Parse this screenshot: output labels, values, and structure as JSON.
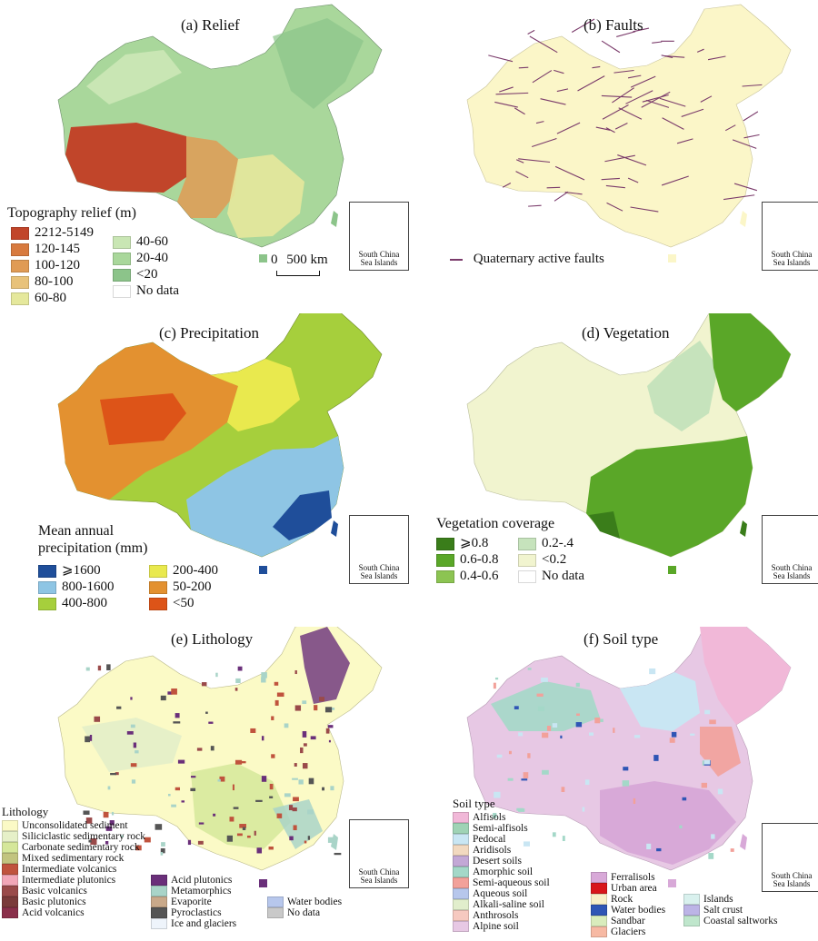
{
  "inset_caption": [
    "South China",
    "Sea Islands"
  ],
  "panels": {
    "relief": {
      "title": "(a) Relief",
      "legend_title": "Topography relief  (m)",
      "classes": [
        {
          "label": "2212-5149",
          "color": "#c1452a"
        },
        {
          "label": "120-145",
          "color": "#d87a3e"
        },
        {
          "label": "100-120",
          "color": "#e09b55"
        },
        {
          "label": "80-100",
          "color": "#e8c27a"
        },
        {
          "label": "60-80",
          "color": "#e5e89c"
        },
        {
          "label": "40-60",
          "color": "#c9e6b4"
        },
        {
          "label": "20-40",
          "color": "#a9d79b"
        },
        {
          "label": "<20",
          "color": "#8cc48a"
        },
        {
          "label": "No data",
          "color": "#ffffff"
        }
      ],
      "scale_zero": "0",
      "scale_label": "500 km"
    },
    "faults": {
      "title": "(b) Faults",
      "legend_label": "Quaternary active faults",
      "line_color": "#7a3a6a",
      "fill_color": "#fbf6c8"
    },
    "precipitation": {
      "title": "(c) Precipitation",
      "legend_title": [
        "Mean annual",
        "precipitation (mm)"
      ],
      "classes": [
        {
          "label": "⩾1600",
          "color": "#1f4e9a"
        },
        {
          "label": "800-1600",
          "color": "#8ec5e4"
        },
        {
          "label": "400-800",
          "color": "#a6cf3c"
        },
        {
          "label": "200-400",
          "color": "#e9e94e"
        },
        {
          "label": "50-200",
          "color": "#e39130"
        },
        {
          "label": "<50",
          "color": "#dd5418"
        }
      ]
    },
    "vegetation": {
      "title": "(d) Vegetation",
      "legend_title": "Vegetation coverage",
      "classes": [
        {
          "label": "⩾0.8",
          "color": "#3a7d1a"
        },
        {
          "label": "0.6-0.8",
          "color": "#5aa728"
        },
        {
          "label": "0.4-0.6",
          "color": "#8cc452"
        },
        {
          "label": "0.2-.4",
          "color": "#c6e3bc"
        },
        {
          "label": "<0.2",
          "color": "#f1f4cf"
        },
        {
          "label": "No data",
          "color": "#ffffff"
        }
      ]
    },
    "lithology": {
      "title": "(e) Lithology",
      "legend_title": "Lithology",
      "classes_col1": [
        {
          "label": "Unconsolidated sediment",
          "color": "#fbfac6"
        },
        {
          "label": "Siliciclastic sedimentary rock",
          "color": "#e6f0c8"
        },
        {
          "label": "Carbonate sedimentary rock",
          "color": "#d5e79a"
        },
        {
          "label": "Mixed sedimentary rock",
          "color": "#c2c47f"
        },
        {
          "label": "Intermediate volcanics",
          "color": "#c0533d"
        },
        {
          "label": "Intermediate plutonics",
          "color": "#f2a7b8"
        },
        {
          "label": "Basic volcanics",
          "color": "#9a4a4a"
        },
        {
          "label": "Basic plutonics",
          "color": "#7a3a3a"
        },
        {
          "label": "Acid volcanics",
          "color": "#8a2f4a"
        }
      ],
      "classes_col2": [
        {
          "label": "Acid plutonics",
          "color": "#6a2f7a"
        },
        {
          "label": "Metamorphics",
          "color": "#a9d4c8"
        },
        {
          "label": "Evaporite",
          "color": "#c9a98a"
        },
        {
          "label": "Pyroclastics",
          "color": "#555555"
        },
        {
          "label": "Ice and glaciers",
          "color": "#eef4fb"
        }
      ],
      "classes_col3": [
        {
          "label": "Water bodies",
          "color": "#b7c7ec"
        },
        {
          "label": "No data",
          "color": "#c9c9c9"
        }
      ]
    },
    "soil": {
      "title": "(f) Soil type",
      "legend_title": "Soil type",
      "classes_col1": [
        {
          "label": "Alfisols",
          "color": "#f1b8d8"
        },
        {
          "label": "Semi-alfisols",
          "color": "#9fd3b5"
        },
        {
          "label": "Pedocal",
          "color": "#c9e6f3"
        },
        {
          "label": "Aridisols",
          "color": "#f2d9c0"
        },
        {
          "label": "Desert soils",
          "color": "#c3a8d6"
        },
        {
          "label": "Amorphic soil",
          "color": "#a4d8c8"
        },
        {
          "label": "Semi-aqueous soil",
          "color": "#f2a19a"
        },
        {
          "label": "Aqueous soil",
          "color": "#b7c7ec"
        },
        {
          "label": "Alkali-saline soil",
          "color": "#e1eecc"
        },
        {
          "label": "Anthrosols",
          "color": "#f6c9c0"
        },
        {
          "label": "Alpine soil",
          "color": "#e7c8e4"
        }
      ],
      "classes_col2": [
        {
          "label": "Ferralisols",
          "color": "#d8a9d8"
        },
        {
          "label": "Urban area",
          "color": "#d8161b"
        },
        {
          "label": "Rock",
          "color": "#f8efc8"
        },
        {
          "label": "Water bodies",
          "color": "#2f55b5"
        },
        {
          "label": "Sandbar",
          "color": "#d9ecbc"
        },
        {
          "label": "Glaciers",
          "color": "#f7b9a3"
        }
      ],
      "classes_col3": [
        {
          "label": "Islands",
          "color": "#d9f1ee"
        },
        {
          "label": "Salt crust",
          "color": "#bcb4e6"
        },
        {
          "label": "Coastal saltworks",
          "color": "#bfe6cc"
        }
      ]
    }
  }
}
